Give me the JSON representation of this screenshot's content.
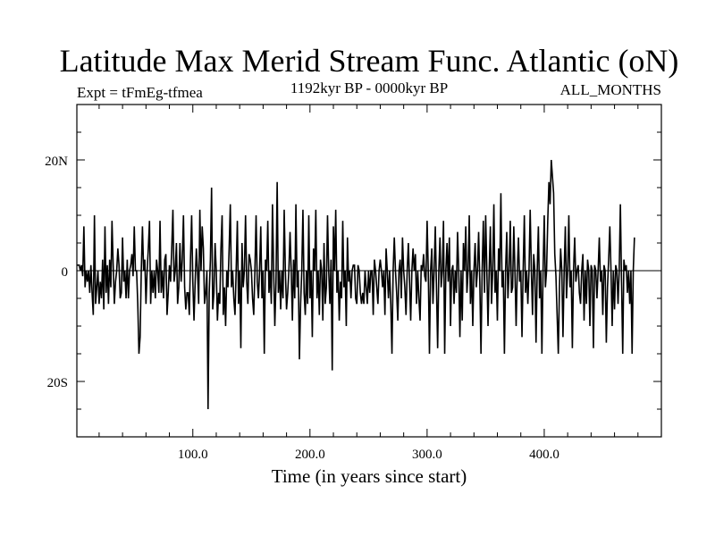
{
  "chart_data": {
    "type": "line",
    "title": "Latitude Max Merid Stream Func. Atlantic (oN)",
    "subtitle_left": "Expt = tFmEg-tfmea",
    "subtitle_center": "1192kyr BP - 0000kyr BP",
    "subtitle_right": "ALL_MONTHS",
    "xlabel": "Time (in years since start)",
    "ylabel": "",
    "xlim": [
      1,
      500
    ],
    "ylim": [
      -30,
      30
    ],
    "x_ticks": [
      100,
      200,
      300,
      400
    ],
    "x_tick_labels": [
      "100.0",
      "200.0",
      "300.0",
      "400.0"
    ],
    "y_ticks": [
      -20,
      0,
      20
    ],
    "y_tick_labels": [
      "20S",
      "0",
      "20N"
    ],
    "grid": false,
    "series": [
      {
        "color": "#000000",
        "x_start": 1,
        "x_step": 1,
        "values": [
          1,
          1,
          1,
          0,
          1,
          -1,
          8,
          -3,
          0,
          -2,
          0,
          -4,
          1,
          -4,
          -8,
          10,
          -6,
          -3,
          0,
          -6,
          -2,
          -5,
          2,
          -7,
          8,
          -4,
          1,
          -6,
          2,
          -3,
          9,
          1,
          -6,
          -2,
          0,
          4,
          1,
          -5,
          -4,
          6,
          -2,
          0,
          -5,
          2,
          -5,
          0,
          1,
          3,
          -1,
          8,
          0,
          0,
          -6,
          -15,
          -12,
          0,
          8,
          0,
          2,
          -6,
          0,
          4,
          9,
          -6,
          0,
          -4,
          0,
          -5,
          2,
          0,
          -4,
          9,
          -4,
          0,
          -5,
          2,
          3,
          -8,
          -4,
          1,
          -2,
          4,
          11,
          -2,
          0,
          5,
          -6,
          -3,
          5,
          -2,
          2,
          10,
          -3,
          -7,
          -4,
          -4,
          -8,
          2,
          10,
          -2,
          -9,
          -2,
          4,
          0,
          -6,
          11,
          0,
          8,
          4,
          -6,
          -4,
          0,
          -25,
          -4,
          2,
          15,
          -7,
          -4,
          5,
          0,
          -9,
          -4,
          -6,
          4,
          10,
          -8,
          -3,
          -10,
          0,
          -3,
          4,
          12,
          -3,
          0,
          -5,
          -8,
          0,
          9,
          -6,
          0,
          -14,
          5,
          -3,
          0,
          10,
          -2,
          -6,
          3,
          2,
          0,
          -5,
          -8,
          0,
          10,
          -2,
          -5,
          0,
          8,
          -5,
          0,
          -15,
          2,
          0,
          9,
          -4,
          0,
          -6,
          12,
          0,
          -10,
          -2,
          16,
          -4,
          0,
          -7,
          0,
          -5,
          11,
          0,
          -7,
          -4,
          0,
          7,
          0,
          -9,
          2,
          -5,
          12,
          -3,
          0,
          -16,
          -6,
          0,
          11,
          -4,
          -8,
          0,
          -6,
          10,
          -5,
          0,
          -12,
          4,
          0,
          11,
          -5,
          0,
          -8,
          2,
          0,
          -9,
          5,
          -6,
          -3,
          10,
          0,
          -6,
          2,
          -18,
          8,
          0,
          11,
          -4,
          0,
          -9,
          -2,
          -5,
          9,
          -3,
          0,
          -10,
          6,
          -2,
          0,
          -5,
          0,
          1,
          1,
          -5,
          -6,
          1,
          0,
          -4,
          -6,
          -4,
          -6,
          0,
          -3,
          -6,
          0,
          -4,
          0,
          0,
          -8,
          2,
          0,
          -3,
          -6,
          0,
          2,
          0,
          -3,
          0,
          -8,
          4,
          0,
          -5,
          0,
          -6,
          -15,
          0,
          6,
          0,
          -4,
          -9,
          0,
          2,
          -5,
          6,
          0,
          -3,
          -8,
          0,
          5,
          -2,
          -9,
          0,
          4,
          0,
          3,
          -6,
          0,
          -5,
          -9,
          1,
          0,
          3,
          -1,
          -2,
          9,
          0,
          -15,
          0,
          4,
          -6,
          0,
          8,
          -3,
          -14,
          0,
          6,
          -3,
          0,
          9,
          -15,
          0,
          5,
          -2,
          6,
          -10,
          0,
          1,
          -6,
          0,
          -4,
          7,
          0,
          -12,
          0,
          -9,
          5,
          0,
          8,
          -4,
          0,
          10,
          -6,
          0,
          -10,
          0,
          5,
          -3,
          0,
          7,
          -2,
          -15,
          0,
          9,
          -4,
          10,
          0,
          -10,
          0,
          8,
          -6,
          0,
          12,
          -4,
          0,
          -9,
          4,
          0,
          14,
          -3,
          0,
          -15,
          0,
          7,
          -5,
          0,
          9,
          -4,
          -3,
          8,
          0,
          -10,
          0,
          6,
          -2,
          0,
          -12,
          0,
          10,
          -4,
          0,
          -6,
          0,
          11,
          0,
          -8,
          3,
          0,
          -13,
          0,
          8,
          -5,
          0,
          -15,
          0,
          10,
          -3,
          0,
          9,
          16,
          12,
          20,
          17,
          14,
          3,
          -1,
          -8,
          -15,
          -3,
          4,
          0,
          -12,
          0,
          8,
          -5,
          0,
          10,
          -3,
          0,
          -14,
          0,
          6,
          -2,
          0,
          1,
          -4,
          -6,
          0,
          3,
          -9,
          0,
          -6,
          2,
          0,
          -10,
          1,
          0,
          -14,
          1,
          0,
          -5,
          0,
          6,
          -2,
          0,
          -8,
          1,
          0,
          -13,
          -3,
          2,
          8,
          0,
          -10,
          0,
          -7,
          1,
          0,
          -6,
          0,
          12,
          -2,
          -15,
          2,
          0,
          1,
          -4,
          0,
          -6,
          0,
          -15,
          0,
          6
        ]
      }
    ]
  }
}
